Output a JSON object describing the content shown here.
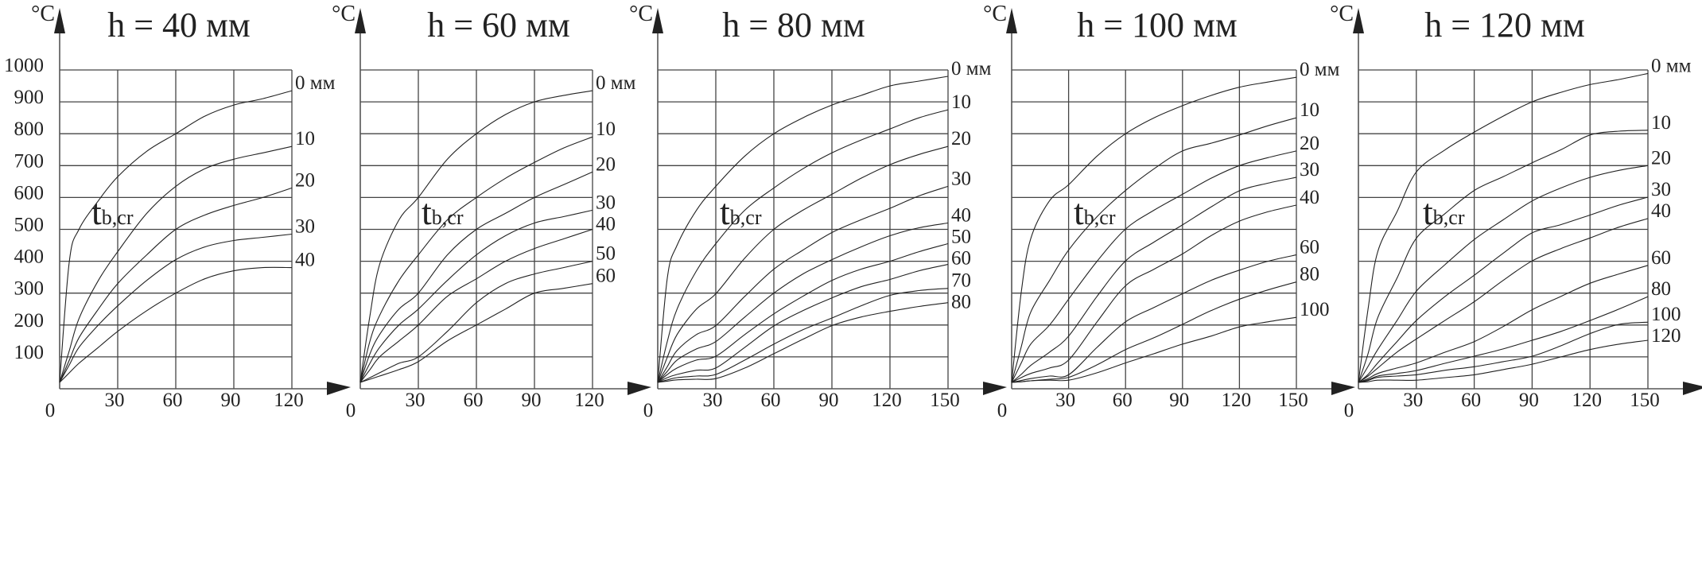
{
  "chart_data": [
    {
      "type": "line",
      "title": "h = 40 мм",
      "ylabel": "°C",
      "annotation": {
        "main": "t",
        "sub": "b,cr"
      },
      "origin_label": "0",
      "x": [
        0,
        5,
        10,
        20,
        30,
        45,
        60,
        75,
        90,
        105,
        120
      ],
      "xticks": [
        "30",
        "60",
        "90",
        "120"
      ],
      "xtick_values": [
        30,
        60,
        90,
        120
      ],
      "xlim": [
        0,
        120
      ],
      "ylim": [
        0,
        1000
      ],
      "yticks": [
        "100",
        "200",
        "300",
        "400",
        "500",
        "600",
        "700",
        "800",
        "900",
        "1000"
      ],
      "ytick_values": [
        100,
        200,
        300,
        400,
        500,
        600,
        700,
        800,
        900,
        1000
      ],
      "grid": true,
      "series": [
        {
          "name": "0 мм",
          "values": [
            20,
            400,
            500,
            590,
            665,
            745,
            800,
            855,
            890,
            910,
            935
          ]
        },
        {
          "name": "10",
          "values": [
            20,
            120,
            220,
            340,
            430,
            550,
            635,
            690,
            720,
            740,
            760
          ]
        },
        {
          "name": "20",
          "values": [
            20,
            90,
            160,
            250,
            330,
            420,
            500,
            545,
            575,
            600,
            630
          ]
        },
        {
          "name": "30",
          "values": [
            20,
            75,
            130,
            200,
            260,
            340,
            405,
            445,
            465,
            475,
            485
          ]
        },
        {
          "name": "40",
          "values": [
            20,
            50,
            80,
            130,
            180,
            245,
            300,
            345,
            370,
            380,
            380
          ]
        }
      ]
    },
    {
      "type": "line",
      "title": "h = 60 мм",
      "ylabel": "°C",
      "annotation": {
        "main": "t",
        "sub": "b,cr"
      },
      "origin_label": "0",
      "x": [
        0,
        5,
        10,
        20,
        30,
        45,
        60,
        75,
        90,
        105,
        120
      ],
      "xticks": [
        "30",
        "60",
        "90",
        "120"
      ],
      "xtick_values": [
        30,
        60,
        90,
        120
      ],
      "xlim": [
        0,
        120
      ],
      "ylim": [
        0,
        1000
      ],
      "grid": true,
      "series": [
        {
          "name": "0 мм",
          "values": [
            20,
            230,
            390,
            530,
            600,
            720,
            800,
            860,
            900,
            920,
            935
          ]
        },
        {
          "name": "10",
          "values": [
            20,
            150,
            230,
            340,
            420,
            530,
            600,
            660,
            710,
            755,
            790
          ]
        },
        {
          "name": "20",
          "values": [
            20,
            110,
            170,
            250,
            300,
            420,
            500,
            550,
            600,
            640,
            680
          ]
        },
        {
          "name": "30",
          "values": [
            20,
            80,
            130,
            200,
            250,
            340,
            420,
            480,
            520,
            540,
            560
          ]
        },
        {
          "name": "40",
          "values": [
            20,
            60,
            100,
            150,
            200,
            290,
            345,
            400,
            440,
            470,
            500
          ]
        },
        {
          "name": "50",
          "values": [
            20,
            35,
            50,
            80,
            100,
            180,
            270,
            330,
            360,
            380,
            400
          ]
        },
        {
          "name": "60",
          "values": [
            20,
            30,
            40,
            60,
            85,
            150,
            200,
            250,
            300,
            315,
            330
          ]
        }
      ]
    },
    {
      "type": "line",
      "title": "h = 80 мм",
      "ylabel": "°C",
      "annotation": {
        "main": "t",
        "sub": "b,cr"
      },
      "origin_label": "0",
      "x": [
        0,
        5,
        10,
        20,
        30,
        45,
        60,
        75,
        90,
        105,
        120,
        135,
        150
      ],
      "xticks": [
        "30",
        "60",
        "90",
        "120",
        "150"
      ],
      "xtick_values": [
        30,
        60,
        90,
        120,
        150
      ],
      "xlim": [
        0,
        150
      ],
      "ylim": [
        0,
        1000
      ],
      "grid": true,
      "series": [
        {
          "name": "0 мм",
          "values": [
            20,
            350,
            450,
            560,
            635,
            730,
            800,
            850,
            890,
            920,
            950,
            965,
            980
          ]
        },
        {
          "name": "10",
          "values": [
            20,
            150,
            250,
            370,
            455,
            560,
            630,
            690,
            740,
            780,
            815,
            850,
            875
          ]
        },
        {
          "name": "20",
          "values": [
            20,
            100,
            170,
            250,
            298,
            410,
            500,
            560,
            610,
            660,
            703,
            735,
            760
          ]
        },
        {
          "name": "30",
          "values": [
            20,
            70,
            120,
            170,
            198,
            290,
            375,
            435,
            490,
            530,
            566,
            605,
            635
          ]
        },
        {
          "name": "40",
          "values": [
            20,
            55,
            90,
            125,
            148,
            225,
            300,
            360,
            405,
            445,
            480,
            505,
            520
          ]
        },
        {
          "name": "50",
          "values": [
            20,
            45,
            65,
            90,
            102,
            170,
            235,
            290,
            340,
            375,
            400,
            430,
            455
          ]
        },
        {
          "name": "60",
          "values": [
            20,
            35,
            45,
            58,
            65,
            130,
            197,
            245,
            285,
            320,
            343,
            370,
            390
          ]
        },
        {
          "name": "70",
          "values": [
            20,
            28,
            35,
            40,
            45,
            90,
            140,
            185,
            222,
            260,
            293,
            308,
            315
          ]
        },
        {
          "name": "80",
          "values": [
            20,
            24,
            28,
            30,
            32,
            65,
            110,
            155,
            198,
            225,
            243,
            258,
            270
          ]
        }
      ]
    },
    {
      "type": "line",
      "title": "h = 100 мм",
      "ylabel": "°C",
      "annotation": {
        "main": "t",
        "sub": "b,cr"
      },
      "origin_label": "0",
      "x": [
        0,
        5,
        10,
        20,
        30,
        45,
        60,
        75,
        90,
        105,
        120,
        135,
        150
      ],
      "xticks": [
        "30",
        "60",
        "90",
        "120",
        "150"
      ],
      "xtick_values": [
        30,
        60,
        90,
        120,
        150
      ],
      "xlim": [
        0,
        150
      ],
      "ylim": [
        0,
        1000
      ],
      "grid": true,
      "series": [
        {
          "name": "0 мм",
          "values": [
            20,
            300,
            470,
            590,
            640,
            730,
            800,
            850,
            888,
            920,
            946,
            962,
            977
          ]
        },
        {
          "name": "10",
          "values": [
            20,
            130,
            240,
            340,
            435,
            540,
            622,
            690,
            746,
            770,
            796,
            825,
            850
          ]
        },
        {
          "name": "20",
          "values": [
            20,
            80,
            140,
            200,
            281,
            400,
            501,
            560,
            610,
            660,
            700,
            725,
            746
          ]
        },
        {
          "name": "30",
          "values": [
            20,
            45,
            73,
            115,
            165,
            290,
            401,
            460,
            514,
            570,
            621,
            645,
            663
          ]
        },
        {
          "name": "40",
          "values": [
            20,
            35,
            48,
            65,
            90,
            210,
            323,
            375,
            423,
            480,
            526,
            555,
            576
          ]
        },
        {
          "name": "60",
          "values": [
            20,
            26,
            32,
            40,
            44,
            130,
            210,
            255,
            298,
            340,
            372,
            400,
            420
          ]
        },
        {
          "name": "80",
          "values": [
            20,
            22,
            25,
            30,
            36,
            75,
            123,
            160,
            202,
            245,
            281,
            310,
            335
          ]
        },
        {
          "name": "100",
          "values": [
            20,
            22,
            25,
            27,
            27,
            50,
            81,
            110,
            140,
            165,
            194,
            210,
            224
          ]
        }
      ]
    },
    {
      "type": "line",
      "title": "h = 120 мм",
      "ylabel": "°C",
      "annotation": {
        "main": "t",
        "sub": "b,cr"
      },
      "origin_label": "0",
      "x": [
        0,
        5,
        10,
        20,
        30,
        45,
        60,
        75,
        90,
        105,
        120,
        135,
        150
      ],
      "xticks": [
        "30",
        "60",
        "90",
        "120",
        "150"
      ],
      "xtick_values": [
        30,
        60,
        90,
        120,
        150
      ],
      "xlim": [
        0,
        150
      ],
      "ylim": [
        0,
        1000
      ],
      "grid": true,
      "series": [
        {
          "name": "0 мм",
          "values": [
            20,
            250,
            430,
            555,
            680,
            750,
            805,
            855,
            900,
            930,
            954,
            970,
            989
          ]
        },
        {
          "name": "10",
          "values": [
            20,
            110,
            223,
            347,
            472,
            550,
            622,
            665,
            709,
            750,
            796,
            808,
            811
          ]
        },
        {
          "name": "20",
          "values": [
            20,
            70,
            123,
            214,
            306,
            390,
            468,
            530,
            589,
            630,
            663,
            685,
            700
          ]
        },
        {
          "name": "30",
          "values": [
            20,
            45,
            81,
            148,
            214,
            290,
            356,
            425,
            489,
            515,
            545,
            576,
            601
          ]
        },
        {
          "name": "40",
          "values": [
            20,
            40,
            65,
            115,
            156,
            215,
            273,
            340,
            401,
            440,
            473,
            507,
            534
          ]
        },
        {
          "name": "60",
          "values": [
            20,
            32,
            48,
            65,
            81,
            115,
            148,
            195,
            248,
            290,
            331,
            360,
            387
          ]
        },
        {
          "name": "80",
          "values": [
            20,
            28,
            40,
            48,
            57,
            80,
            102,
            125,
            152,
            180,
            214,
            250,
            289
          ]
        },
        {
          "name": "100",
          "values": [
            20,
            26,
            36,
            40,
            44,
            58,
            69,
            85,
            102,
            135,
            173,
            202,
            209
          ]
        },
        {
          "name": "120",
          "values": [
            20,
            22,
            27,
            27,
            27,
            35,
            44,
            60,
            77,
            100,
            123,
            140,
            152
          ]
        }
      ]
    }
  ]
}
